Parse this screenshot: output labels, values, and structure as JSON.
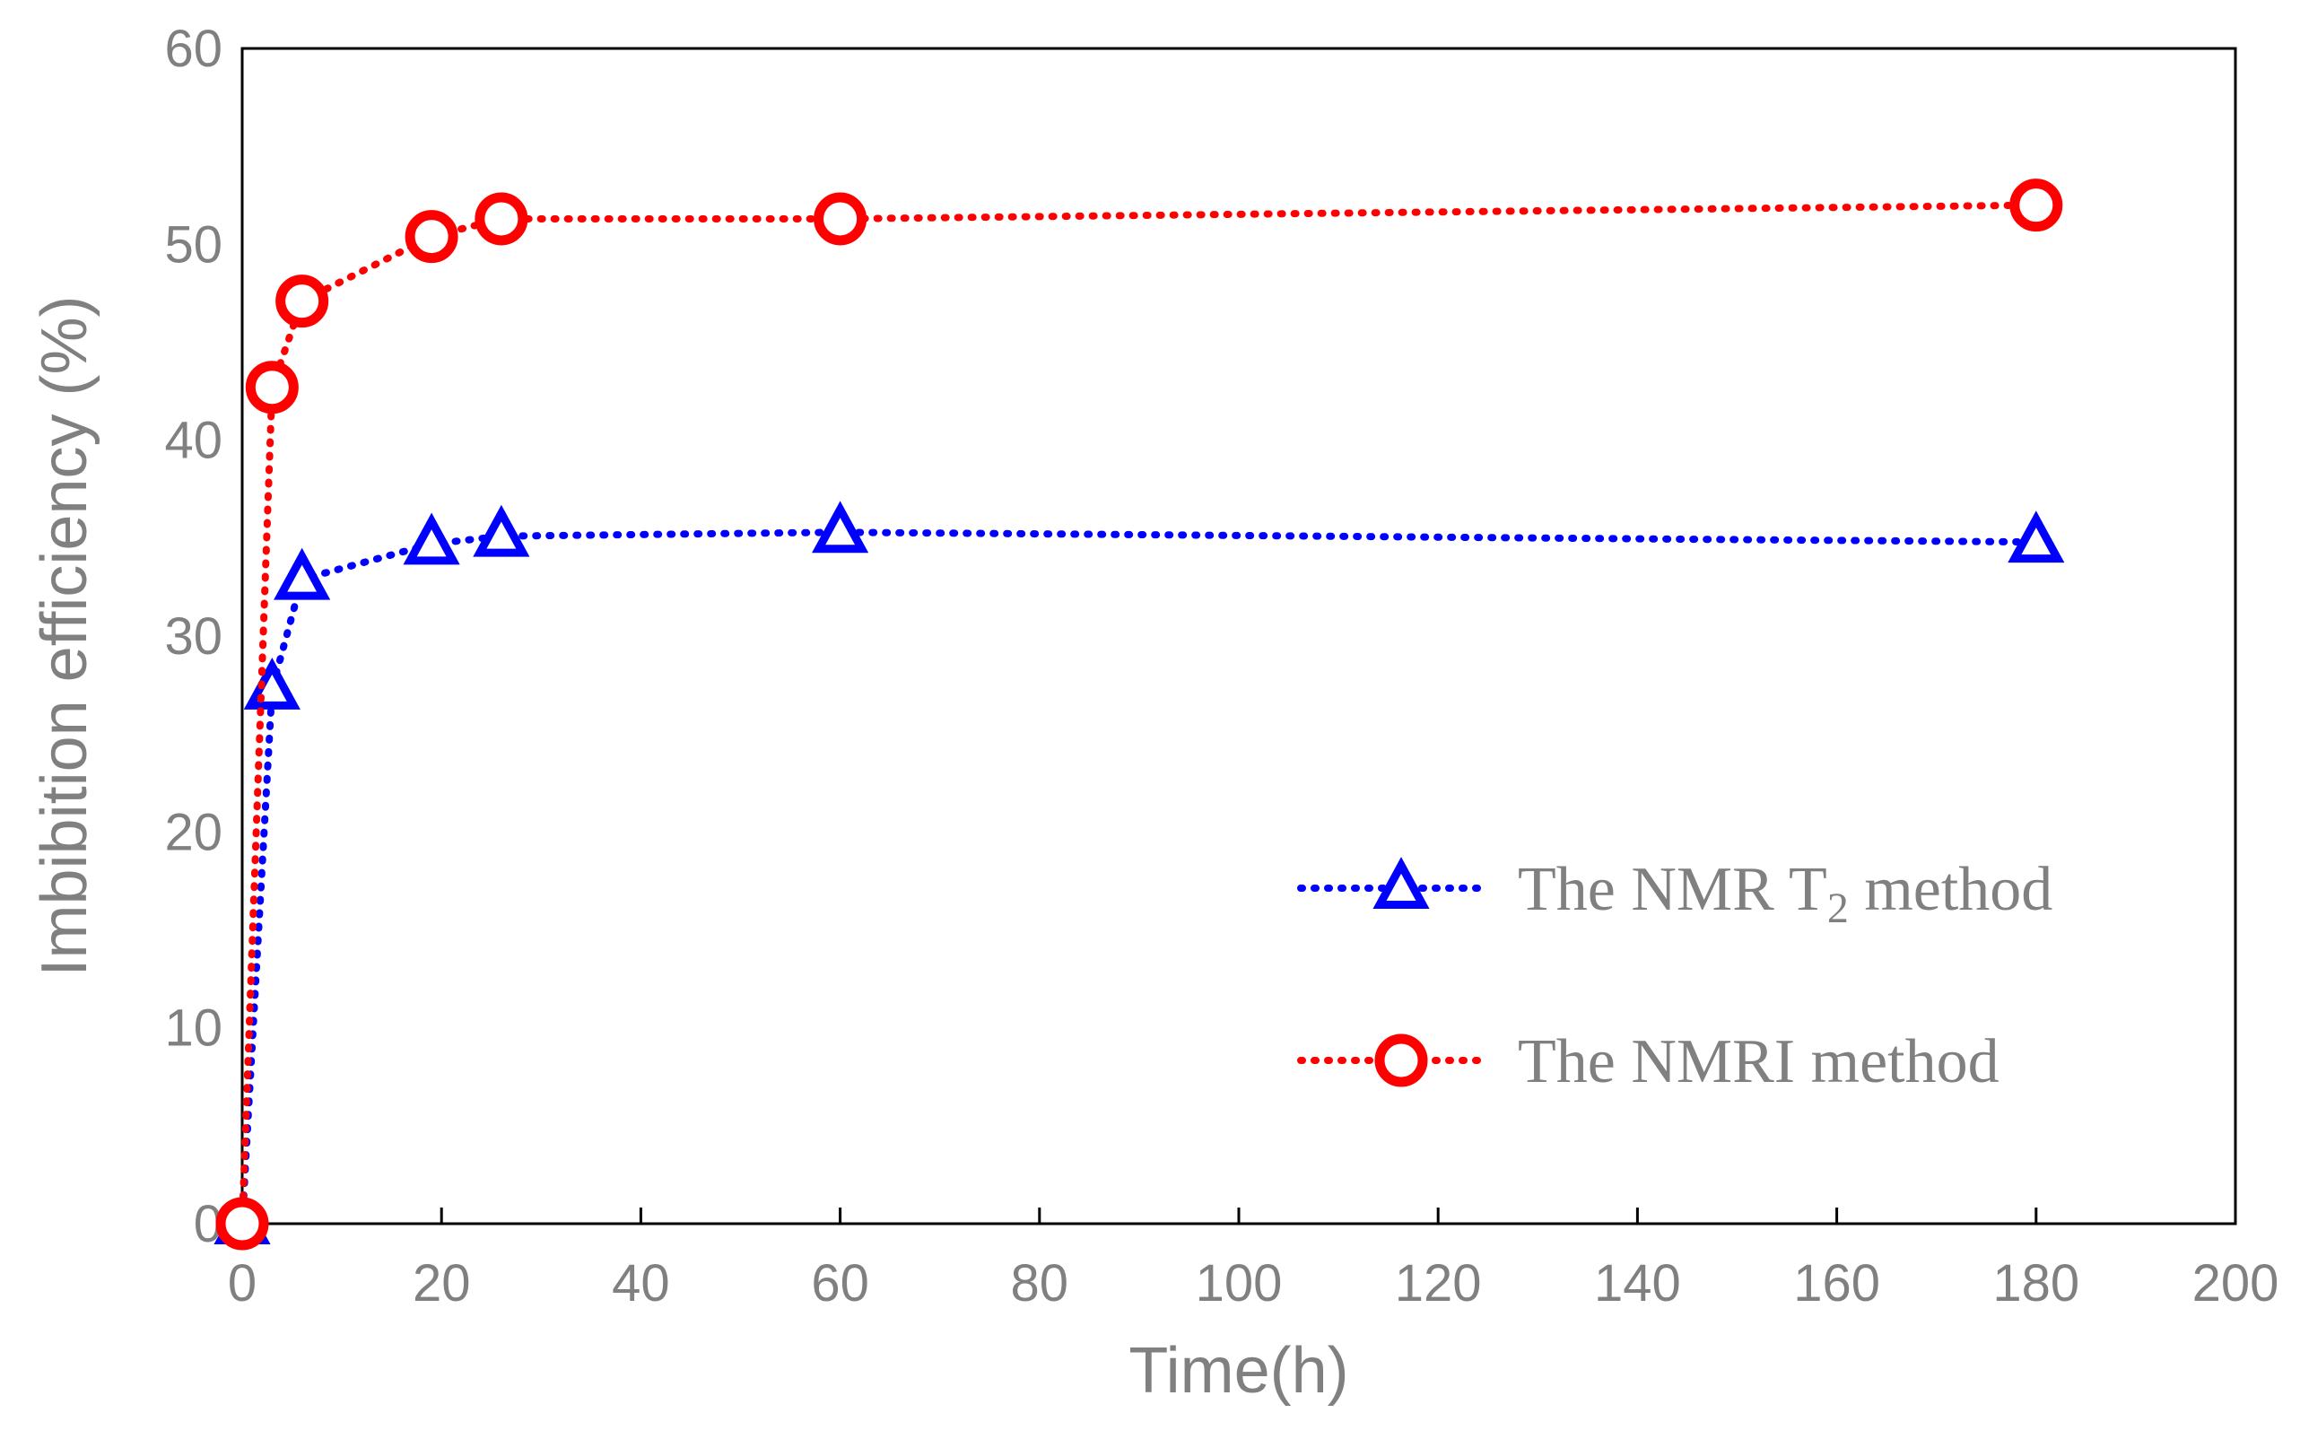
{
  "chart_data": {
    "type": "line",
    "xlabel": "Time(h)",
    "ylabel": "Imbibition efficiency (%)",
    "xlim": [
      0,
      200
    ],
    "ylim": [
      0,
      60
    ],
    "x_ticks": [
      "0",
      "20",
      "40",
      "60",
      "80",
      "100",
      "120",
      "140",
      "160",
      "180",
      "200"
    ],
    "y_ticks": [
      "0",
      "10",
      "20",
      "30",
      "40",
      "50",
      "60"
    ],
    "grid": false,
    "legend_position": "bottom-right",
    "series": [
      {
        "name": "The NMR T₂ method",
        "legend_main": "The NMR T",
        "legend_sub": "2",
        "legend_tail": " method",
        "marker": "triangle",
        "line_style": "dotted",
        "color": "#0000ff",
        "points": [
          {
            "x": 0,
            "y": 0
          },
          {
            "x": 3,
            "y": 27.3
          },
          {
            "x": 6,
            "y": 32.9
          },
          {
            "x": 19,
            "y": 34.7
          },
          {
            "x": 26,
            "y": 35.1
          },
          {
            "x": 60,
            "y": 35.3
          },
          {
            "x": 180,
            "y": 34.8
          }
        ]
      },
      {
        "name": "The NMRI method",
        "legend_main": "The NMRI method",
        "legend_sub": "",
        "legend_tail": "",
        "marker": "circle",
        "line_style": "dotted",
        "color": "#ff0000",
        "points": [
          {
            "x": 0,
            "y": 0
          },
          {
            "x": 3,
            "y": 42.7
          },
          {
            "x": 6,
            "y": 47.1
          },
          {
            "x": 19,
            "y": 50.4
          },
          {
            "x": 26,
            "y": 51.3
          },
          {
            "x": 60,
            "y": 51.3
          },
          {
            "x": 180,
            "y": 52.0
          }
        ]
      }
    ]
  }
}
